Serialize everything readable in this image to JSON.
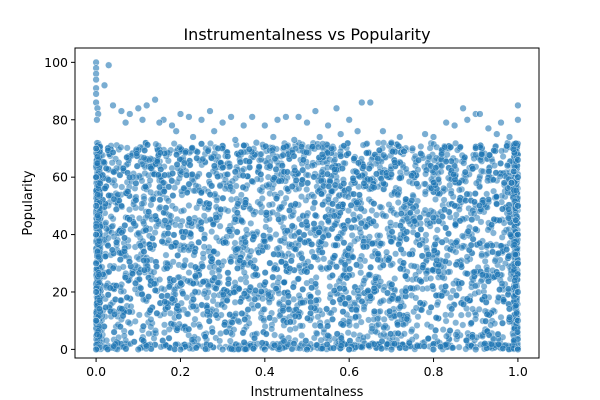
{
  "chart_data": {
    "type": "scatter",
    "title": "Instrumentalness vs Popularity",
    "xlabel": "Instrumentalness",
    "ylabel": "Popularity",
    "xlim": [
      -0.05,
      1.05
    ],
    "ylim": [
      -3,
      105
    ],
    "xticks": [
      0.0,
      0.2,
      0.4,
      0.6,
      0.8,
      1.0
    ],
    "xtick_labels": [
      "0.0",
      "0.2",
      "0.4",
      "0.6",
      "0.8",
      "1.0"
    ],
    "yticks": [
      0,
      20,
      40,
      60,
      80,
      100
    ],
    "ytick_labels": [
      "0",
      "20",
      "40",
      "60",
      "80",
      "100"
    ],
    "grid": false,
    "marker_color": "#1f77b4",
    "marker_edge_color": "#ffffff",
    "series": [
      {
        "points": [
          [
            0.0,
            100
          ],
          [
            0.0,
            98
          ],
          [
            0.0,
            96
          ],
          [
            0.0,
            94
          ],
          [
            0.0,
            91
          ],
          [
            0.0,
            89
          ],
          [
            0.0,
            86
          ],
          [
            0.003,
            84
          ],
          [
            0.005,
            82
          ],
          [
            0.002,
            80
          ],
          [
            0.0,
            0
          ],
          [
            0.0,
            10
          ],
          [
            0.0,
            20
          ],
          [
            0.0,
            30
          ],
          [
            0.0,
            40
          ],
          [
            0.0,
            50
          ],
          [
            0.0,
            60
          ],
          [
            0.0,
            70
          ],
          [
            0.03,
            99
          ],
          [
            0.02,
            92
          ],
          [
            0.04,
            85
          ],
          [
            0.06,
            83
          ],
          [
            0.08,
            82
          ],
          [
            0.1,
            84
          ],
          [
            0.12,
            85
          ],
          [
            0.14,
            87
          ],
          [
            0.16,
            80
          ],
          [
            0.18,
            78
          ],
          [
            0.2,
            82
          ],
          [
            0.22,
            81
          ],
          [
            0.25,
            80
          ],
          [
            0.27,
            83
          ],
          [
            0.3,
            79
          ],
          [
            0.32,
            81
          ],
          [
            0.35,
            78
          ],
          [
            0.37,
            81
          ],
          [
            0.4,
            78
          ],
          [
            0.43,
            80
          ],
          [
            0.45,
            81
          ],
          [
            0.48,
            81
          ],
          [
            0.5,
            79
          ],
          [
            0.52,
            83
          ],
          [
            0.55,
            78
          ],
          [
            0.57,
            84
          ],
          [
            0.6,
            80
          ],
          [
            0.63,
            86
          ],
          [
            0.65,
            86
          ],
          [
            0.68,
            76
          ],
          [
            0.72,
            74
          ],
          [
            0.75,
            70
          ],
          [
            0.78,
            75
          ],
          [
            0.8,
            74
          ],
          [
            0.83,
            79
          ],
          [
            0.85,
            78
          ],
          [
            0.87,
            84
          ],
          [
            0.88,
            80
          ],
          [
            0.9,
            82
          ],
          [
            0.91,
            82
          ],
          [
            0.93,
            77
          ],
          [
            0.95,
            75
          ],
          [
            0.98,
            74
          ],
          [
            1.0,
            85
          ],
          [
            1.0,
            80
          ],
          [
            1.0,
            66
          ],
          [
            0.96,
            79
          ],
          [
            0.73,
            69
          ],
          [
            0.7,
            72
          ],
          [
            0.62,
            76
          ],
          [
            0.58,
            75
          ],
          [
            0.53,
            74
          ],
          [
            0.47,
            73
          ],
          [
            0.42,
            74
          ],
          [
            0.38,
            72
          ],
          [
            0.33,
            73
          ],
          [
            0.28,
            76
          ],
          [
            0.23,
            74
          ],
          [
            0.19,
            76
          ],
          [
            0.15,
            79
          ],
          [
            0.11,
            80
          ],
          [
            0.07,
            79
          ],
          [
            0.1,
            0
          ],
          [
            0.2,
            0
          ],
          [
            0.3,
            0
          ],
          [
            0.4,
            0
          ],
          [
            0.5,
            0
          ],
          [
            0.6,
            0
          ],
          [
            0.7,
            0
          ],
          [
            0.8,
            0
          ],
          [
            0.9,
            0
          ],
          [
            1.0,
            0
          ],
          [
            1.0,
            10
          ],
          [
            1.0,
            20
          ],
          [
            1.0,
            30
          ],
          [
            1.0,
            40
          ],
          [
            1.0,
            50
          ],
          [
            1.0,
            60
          ],
          [
            0.995,
            45
          ],
          [
            0.99,
            62
          ],
          [
            0.985,
            58
          ],
          [
            0.975,
            64
          ]
        ]
      }
    ]
  }
}
